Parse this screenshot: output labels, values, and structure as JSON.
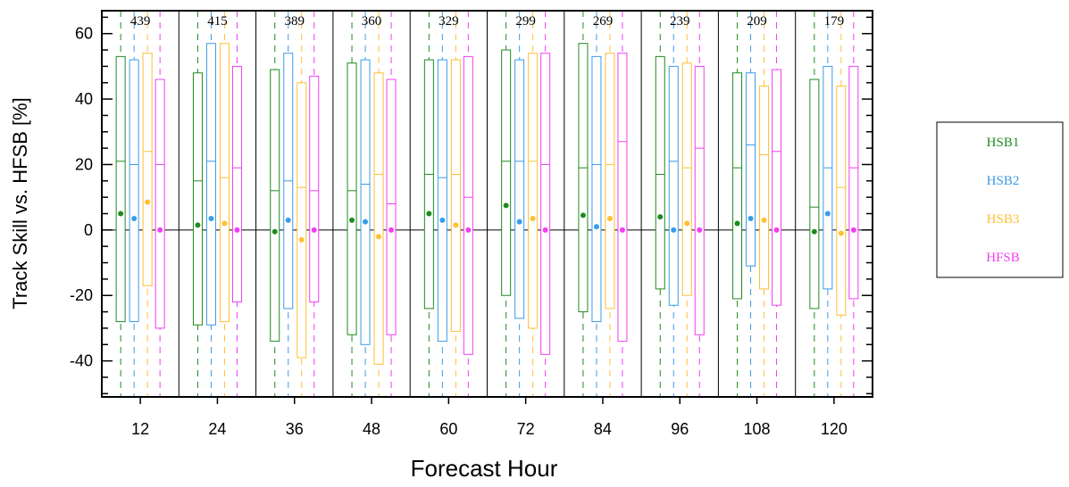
{
  "chart_data": {
    "type": "box",
    "xlabel": "Forecast Hour",
    "ylabel": "Track Skill vs. HFSB [%]",
    "ylim": [
      -51,
      67
    ],
    "y_ticks": [
      -40,
      -20,
      0,
      20,
      40,
      60
    ],
    "categories": [
      "12",
      "24",
      "36",
      "48",
      "60",
      "72",
      "84",
      "96",
      "108",
      "120"
    ],
    "sample_counts": [
      "439",
      "415",
      "389",
      "360",
      "329",
      "299",
      "269",
      "239",
      "209",
      "179"
    ],
    "legend_position": "right",
    "series": [
      {
        "name": "HSB1",
        "color": "#1f8a1f",
        "boxes": [
          {
            "lower": -28,
            "median": 21,
            "upper": 53,
            "mean": 5
          },
          {
            "lower": -29,
            "median": 15,
            "upper": 48,
            "mean": 1.5
          },
          {
            "lower": -34,
            "median": 12,
            "upper": 49,
            "mean": -0.5
          },
          {
            "lower": -32,
            "median": 12,
            "upper": 51,
            "mean": 3
          },
          {
            "lower": -24,
            "median": 17,
            "upper": 52,
            "mean": 5
          },
          {
            "lower": -20,
            "median": 21,
            "upper": 55,
            "mean": 7.5
          },
          {
            "lower": -25,
            "median": 19,
            "upper": 57,
            "mean": 4.5
          },
          {
            "lower": -18,
            "median": 17,
            "upper": 53,
            "mean": 4
          },
          {
            "lower": -21,
            "median": 19,
            "upper": 48,
            "mean": 2
          },
          {
            "lower": -24,
            "median": 7,
            "upper": 46,
            "mean": -0.5
          }
        ]
      },
      {
        "name": "HSB2",
        "color": "#3a9be8",
        "boxes": [
          {
            "lower": -28,
            "median": 20,
            "upper": 52,
            "mean": 3.5
          },
          {
            "lower": -29,
            "median": 21,
            "upper": 57,
            "mean": 3.5
          },
          {
            "lower": -24,
            "median": 15,
            "upper": 54,
            "mean": 3
          },
          {
            "lower": -35,
            "median": 14,
            "upper": 52,
            "mean": 2.5
          },
          {
            "lower": -34,
            "median": 16,
            "upper": 52,
            "mean": 3
          },
          {
            "lower": -27,
            "median": 21,
            "upper": 52,
            "mean": 2.5
          },
          {
            "lower": -28,
            "median": 20,
            "upper": 53,
            "mean": 1
          },
          {
            "lower": -23,
            "median": 21,
            "upper": 50,
            "mean": 0
          },
          {
            "lower": -11,
            "median": 26,
            "upper": 48,
            "mean": 3.5
          },
          {
            "lower": -18,
            "median": 19,
            "upper": 50,
            "mean": 5
          }
        ]
      },
      {
        "name": "HSB3",
        "color": "#ffbf33",
        "boxes": [
          {
            "lower": -17,
            "median": 24,
            "upper": 54,
            "mean": 8.5
          },
          {
            "lower": -28,
            "median": 16,
            "upper": 57,
            "mean": 2
          },
          {
            "lower": -39,
            "median": 13,
            "upper": 45,
            "mean": -3
          },
          {
            "lower": -41,
            "median": 17,
            "upper": 48,
            "mean": -2
          },
          {
            "lower": -31,
            "median": 17,
            "upper": 52,
            "mean": 1.5
          },
          {
            "lower": -30,
            "median": 21,
            "upper": 54,
            "mean": 3.5
          },
          {
            "lower": -24,
            "median": 20,
            "upper": 54,
            "mean": 3.5
          },
          {
            "lower": -20,
            "median": 19,
            "upper": 51,
            "mean": 2
          },
          {
            "lower": -18,
            "median": 23,
            "upper": 44,
            "mean": 3
          },
          {
            "lower": -26,
            "median": 13,
            "upper": 44,
            "mean": -1
          }
        ]
      },
      {
        "name": "HFSB",
        "color": "#f23df2",
        "boxes": [
          {
            "lower": -30,
            "median": 20,
            "upper": 46,
            "mean": 0
          },
          {
            "lower": -22,
            "median": 19,
            "upper": 50,
            "mean": 0
          },
          {
            "lower": -22,
            "median": 12,
            "upper": 47,
            "mean": 0
          },
          {
            "lower": -32,
            "median": 8,
            "upper": 46,
            "mean": 0
          },
          {
            "lower": -38,
            "median": 10,
            "upper": 53,
            "mean": 0
          },
          {
            "lower": -38,
            "median": 20,
            "upper": 54,
            "mean": 0
          },
          {
            "lower": -34,
            "median": 27,
            "upper": 54,
            "mean": 0
          },
          {
            "lower": -32,
            "median": 25,
            "upper": 50,
            "mean": 0
          },
          {
            "lower": -23,
            "median": 24,
            "upper": 49,
            "mean": 0
          },
          {
            "lower": -21,
            "median": 19,
            "upper": 50,
            "mean": 0
          }
        ]
      }
    ]
  }
}
